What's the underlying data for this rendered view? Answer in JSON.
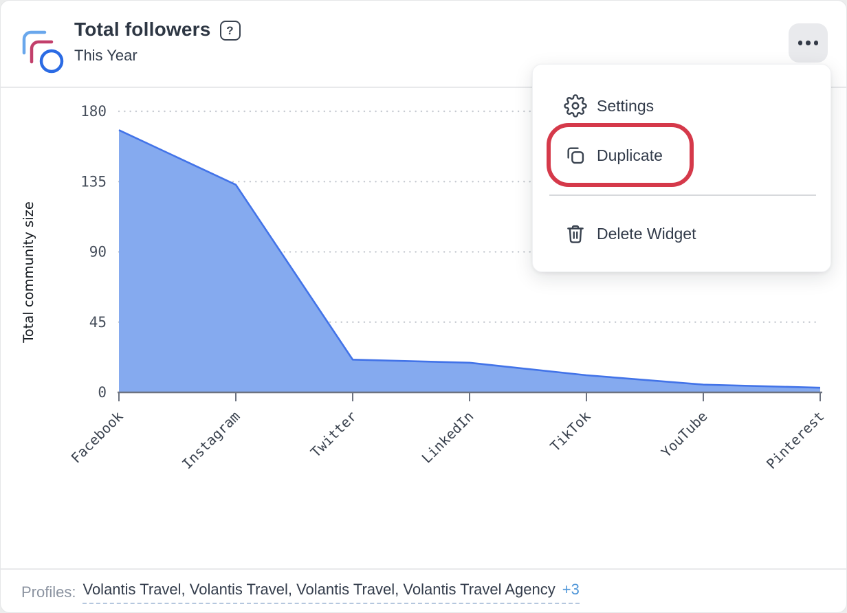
{
  "widget": {
    "title": "Total followers",
    "subtitle": "This Year",
    "help_glyph": "?"
  },
  "menu": {
    "items": [
      {
        "label": "Settings",
        "icon": "gear-icon"
      },
      {
        "label": "Duplicate",
        "icon": "copy-icon",
        "annotated": true
      },
      {
        "label": "Delete Widget",
        "icon": "trash-icon"
      }
    ]
  },
  "chart_data": {
    "type": "area",
    "title": "Total followers",
    "categories": [
      "Facebook",
      "Instagram",
      "Twitter",
      "LinkedIn",
      "TikTok",
      "YouTube",
      "Pinterest"
    ],
    "values": [
      168,
      133,
      21,
      19,
      11,
      5,
      3
    ],
    "xlabel": "",
    "ylabel": "Total community size",
    "ylim": [
      0,
      180
    ],
    "yticks": [
      0,
      45,
      90,
      135,
      180
    ],
    "grid": "dotted-horizontal",
    "legend": "none",
    "colors": {
      "fill": "#85aaef",
      "line": "#4273e8"
    }
  },
  "footer": {
    "label": "Profiles:",
    "profiles_text": "Volantis Travel, Volantis Travel, Volantis Travel, Volantis Travel Agency",
    "more_link": "+3"
  },
  "colors": {
    "accent_red_annotation": "#d5394a",
    "menu_text": "#323b4a",
    "link_blue": "#4f96d8",
    "icon_blue": "#2b6be4",
    "icon_lightblue": "#69a7ec",
    "icon_crimson": "#c23f6b",
    "grid_dot": "#c6cad1",
    "axis_line": "#6d7380"
  }
}
